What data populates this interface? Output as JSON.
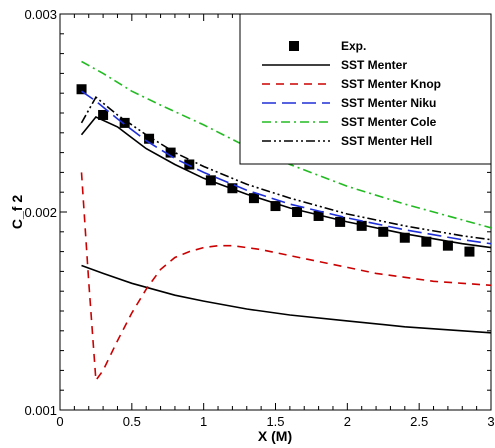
{
  "chart_data": {
    "type": "line",
    "title": "",
    "xlabel": "X (M)",
    "ylabel": "C_f 2",
    "xlim": [
      0,
      3
    ],
    "ylim": [
      0.001,
      0.003
    ],
    "x_ticks": [
      0,
      0.5,
      1,
      1.5,
      2,
      2.5,
      3
    ],
    "x_tick_labels": [
      "0",
      "0.5",
      "1",
      "1.5",
      "2",
      "2.5",
      "3"
    ],
    "y_ticks": [
      0.001,
      0.002,
      0.003
    ],
    "y_tick_labels": [
      "0.001",
      "0.002",
      "0.003"
    ],
    "grid": false,
    "legend_position": "top-right",
    "series": [
      {
        "name": "Exp.",
        "style": "markers",
        "marker": "square",
        "color": "#000000",
        "x": [
          0.15,
          0.3,
          0.45,
          0.62,
          0.77,
          0.9,
          1.05,
          1.2,
          1.35,
          1.5,
          1.65,
          1.8,
          1.95,
          2.1,
          2.25,
          2.4,
          2.55,
          2.7,
          2.85
        ],
        "y": [
          0.00262,
          0.00249,
          0.00245,
          0.00237,
          0.0023,
          0.00224,
          0.00216,
          0.00212,
          0.00207,
          0.00203,
          0.002,
          0.00198,
          0.00195,
          0.00193,
          0.0019,
          0.00187,
          0.00185,
          0.00183,
          0.0018
        ]
      },
      {
        "name": "SST Menter",
        "style": "solid",
        "color": "#000000",
        "x": [
          0.15,
          0.25,
          0.4,
          0.6,
          0.8,
          1.0,
          1.3,
          1.6,
          2.0,
          2.4,
          2.8,
          3.0
        ],
        "y": [
          0.00239,
          0.00248,
          0.00243,
          0.00232,
          0.00224,
          0.00217,
          0.00209,
          0.00202,
          0.00195,
          0.00189,
          0.00184,
          0.00182
        ]
      },
      {
        "name": "SST Menter",
        "style": "solid",
        "color": "#000000",
        "x": [
          0.15,
          0.3,
          0.5,
          0.8,
          1.0,
          1.3,
          1.6,
          2.0,
          2.4,
          2.8,
          3.0
        ],
        "y": [
          0.00173,
          0.00169,
          0.00164,
          0.00158,
          0.00155,
          0.00151,
          0.00148,
          0.00145,
          0.00142,
          0.0014,
          0.00139
        ]
      },
      {
        "name": "SST Menter Knop",
        "style": "dashed",
        "color": "#cc0000",
        "x": [
          0.15,
          0.2,
          0.25,
          0.3,
          0.4,
          0.5,
          0.6,
          0.7,
          0.8,
          0.9,
          1.0,
          1.1,
          1.2,
          1.3,
          1.4,
          1.6,
          1.8,
          2.0,
          2.2,
          2.4,
          2.6,
          2.8,
          3.0
        ],
        "y": [
          0.0022,
          0.00165,
          0.00115,
          0.0012,
          0.00135,
          0.00149,
          0.00161,
          0.00171,
          0.00177,
          0.0018,
          0.00182,
          0.00183,
          0.00183,
          0.00182,
          0.00181,
          0.00178,
          0.00175,
          0.00172,
          0.00169,
          0.00167,
          0.00165,
          0.00164,
          0.00163
        ]
      },
      {
        "name": "SST Menter Niku",
        "style": "longdash",
        "color": "#1f2fd6",
        "x": [
          0.15,
          0.25,
          0.4,
          0.6,
          0.8,
          1.0,
          1.3,
          1.6,
          2.0,
          2.4,
          2.8,
          3.0
        ],
        "y": [
          0.00261,
          0.00256,
          0.00247,
          0.00236,
          0.00227,
          0.0022,
          0.00211,
          0.00204,
          0.00197,
          0.00191,
          0.00186,
          0.00184
        ]
      },
      {
        "name": "SST Menter Cole",
        "style": "dashdot",
        "color": "#22bb22",
        "x": [
          0.15,
          0.3,
          0.5,
          0.7,
          1.0,
          1.3,
          1.6,
          2.0,
          2.4,
          2.8,
          3.0
        ],
        "y": [
          0.00276,
          0.0027,
          0.00261,
          0.00254,
          0.00244,
          0.00233,
          0.00224,
          0.00213,
          0.00204,
          0.00196,
          0.00192
        ]
      },
      {
        "name": "SST Menter Hell",
        "style": "dashdotdot",
        "color": "#000000",
        "x": [
          0.15,
          0.25,
          0.4,
          0.6,
          0.8,
          1.0,
          1.3,
          1.6,
          2.0,
          2.4,
          2.8,
          3.0
        ],
        "y": [
          0.00245,
          0.00258,
          0.00249,
          0.00239,
          0.0023,
          0.00223,
          0.00214,
          0.00207,
          0.00199,
          0.00193,
          0.00188,
          0.00186
        ]
      }
    ]
  }
}
